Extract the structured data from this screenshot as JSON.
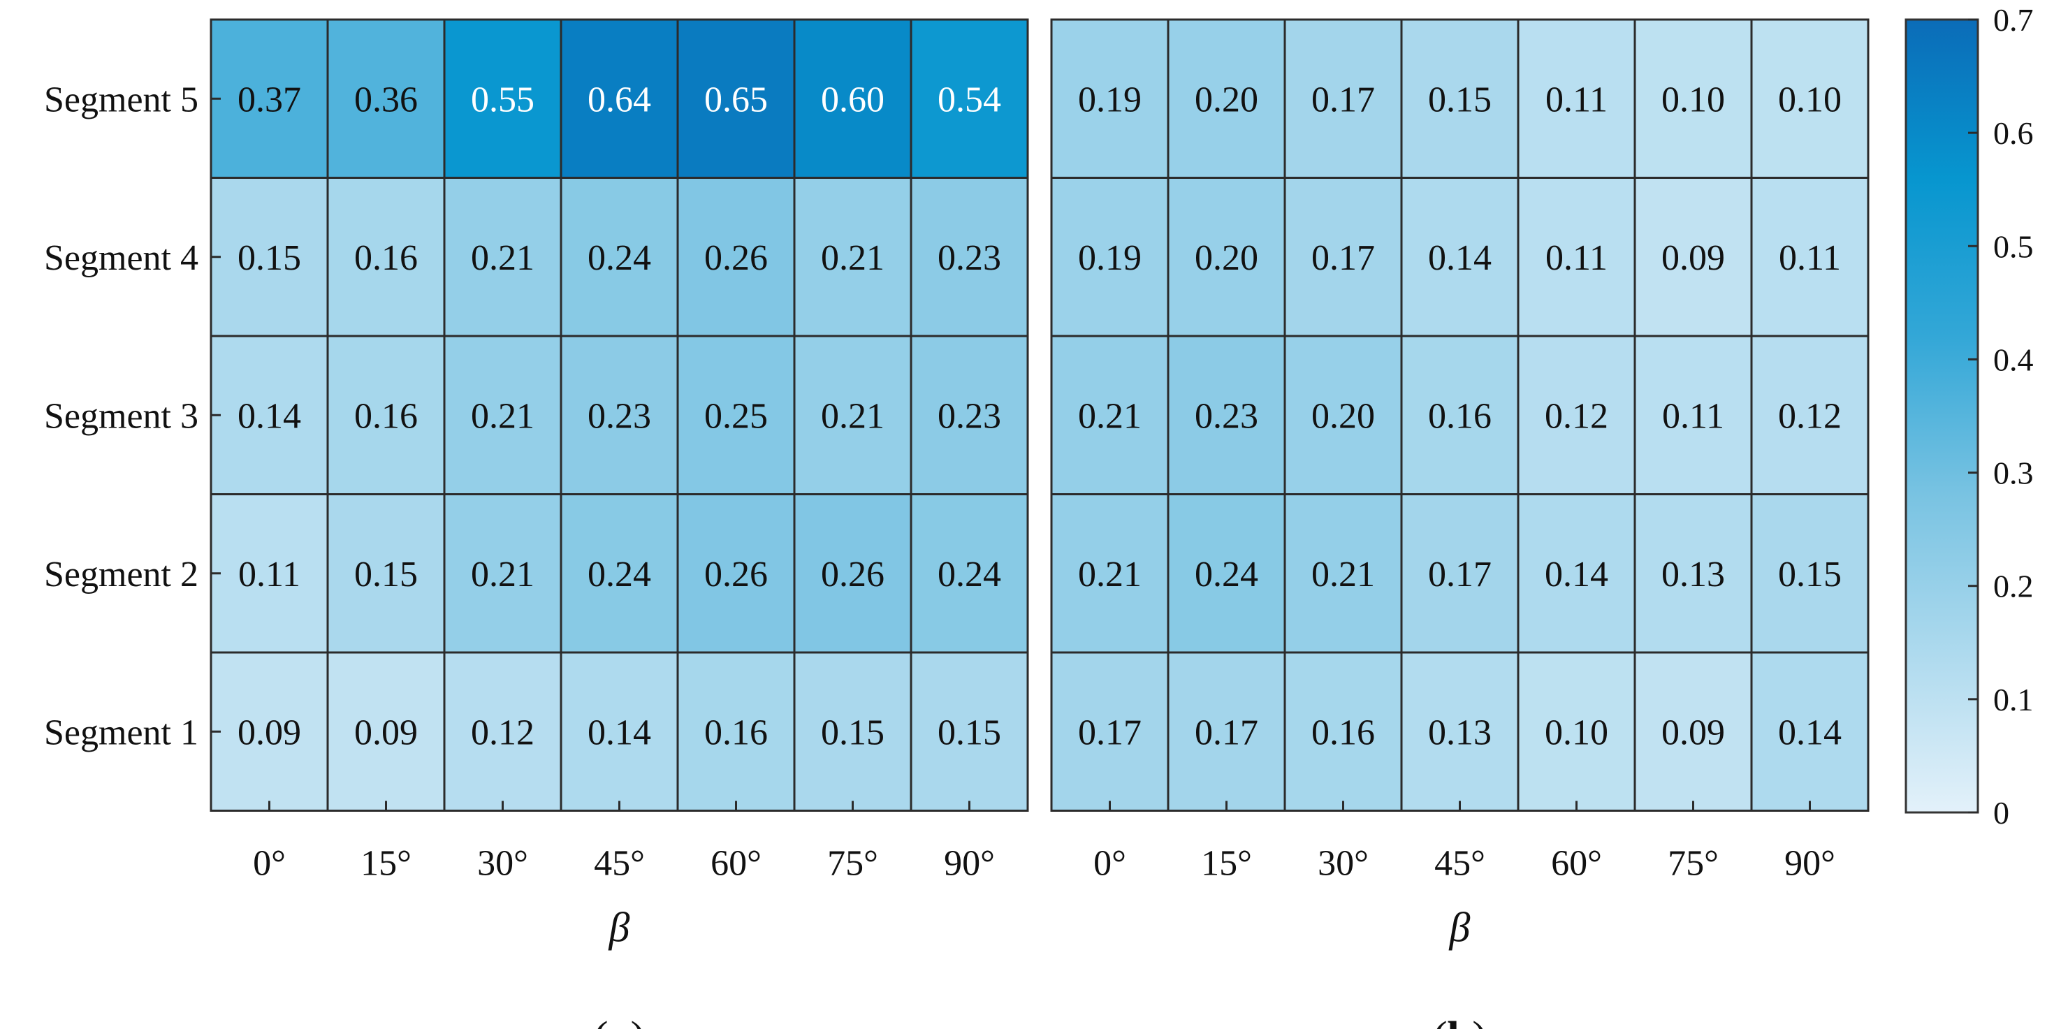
{
  "chart_data": [
    {
      "type": "heatmap",
      "panel_label": "(a)",
      "xlabel": "β",
      "x": [
        "0°",
        "15°",
        "30°",
        "45°",
        "60°",
        "75°",
        "90°"
      ],
      "y": [
        "Segment 5",
        "Segment 4",
        "Segment 3",
        "Segment 2",
        "Segment 1"
      ],
      "values": [
        [
          0.37,
          0.36,
          0.55,
          0.64,
          0.65,
          0.6,
          0.54
        ],
        [
          0.15,
          0.16,
          0.21,
          0.24,
          0.26,
          0.21,
          0.23
        ],
        [
          0.14,
          0.16,
          0.21,
          0.23,
          0.25,
          0.21,
          0.23
        ],
        [
          0.11,
          0.15,
          0.21,
          0.24,
          0.26,
          0.26,
          0.24
        ],
        [
          0.09,
          0.09,
          0.12,
          0.14,
          0.16,
          0.15,
          0.15
        ]
      ]
    },
    {
      "type": "heatmap",
      "panel_label": "(b)",
      "xlabel": "β",
      "x": [
        "0°",
        "15°",
        "30°",
        "45°",
        "60°",
        "75°",
        "90°"
      ],
      "y": [
        "Segment 5",
        "Segment 4",
        "Segment 3",
        "Segment 2",
        "Segment 1"
      ],
      "values": [
        [
          0.19,
          0.2,
          0.17,
          0.15,
          0.11,
          0.1,
          0.1
        ],
        [
          0.19,
          0.2,
          0.17,
          0.14,
          0.11,
          0.09,
          0.11
        ],
        [
          0.21,
          0.23,
          0.2,
          0.16,
          0.12,
          0.11,
          0.12
        ],
        [
          0.21,
          0.24,
          0.21,
          0.17,
          0.14,
          0.13,
          0.15
        ],
        [
          0.17,
          0.17,
          0.16,
          0.13,
          0.1,
          0.09,
          0.14
        ]
      ]
    }
  ],
  "colorbar": {
    "ticks": [
      "0",
      "0.1",
      "0.2",
      "0.3",
      "0.4",
      "0.5",
      "0.6",
      "0.7"
    ],
    "range": [
      0,
      0.7
    ],
    "color_low": "#e3f1fa",
    "color_high": "#0b6cb8"
  },
  "value_format_digits": 2
}
